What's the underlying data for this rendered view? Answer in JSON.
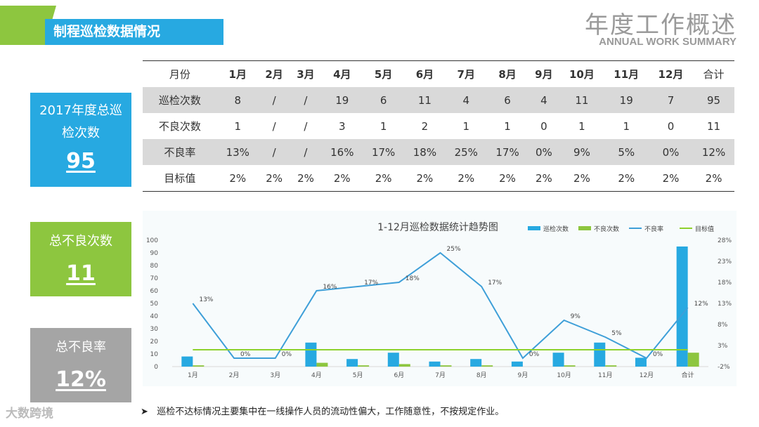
{
  "section_title": "制程巡检数据情况",
  "header": {
    "cn": "年度工作概述",
    "en": "ANNUAL WORK SUMMARY"
  },
  "cards": [
    {
      "label": "2017年度总巡检次数",
      "value": "95",
      "color": "#27a9e1"
    },
    {
      "label": "总不良次数",
      "value": "11",
      "color": "#8dc63f"
    },
    {
      "label": "总不良率",
      "value": "12%",
      "color": "#a5a5a5"
    }
  ],
  "table": {
    "header": [
      "月份",
      "1月",
      "2月",
      "3月",
      "4月",
      "5月",
      "6月",
      "7月",
      "8月",
      "9月",
      "10月",
      "11月",
      "12月",
      "合计"
    ],
    "rows": [
      [
        "巡检次数",
        "8",
        "/",
        "/",
        "19",
        "6",
        "11",
        "4",
        "6",
        "4",
        "11",
        "19",
        "7",
        "95"
      ],
      [
        "不良次数",
        "1",
        "/",
        "/",
        "3",
        "1",
        "2",
        "1",
        "1",
        "0",
        "1",
        "1",
        "0",
        "11"
      ],
      [
        "不良率",
        "13%",
        "/",
        "/",
        "16%",
        "17%",
        "18%",
        "25%",
        "17%",
        "0%",
        "9%",
        "5%",
        "0%",
        "12%"
      ],
      [
        "目标值",
        "2%",
        "2%",
        "2%",
        "2%",
        "2%",
        "2%",
        "2%",
        "2%",
        "2%",
        "2%",
        "2%",
        "2%",
        "2%"
      ]
    ]
  },
  "chart_data": {
    "type": "bar",
    "title": "1-12月巡检数据统计趋势图",
    "categories": [
      "1月",
      "2月",
      "3月",
      "4月",
      "5月",
      "6月",
      "7月",
      "8月",
      "9月",
      "10月",
      "11月",
      "12月",
      "合计"
    ],
    "series": [
      {
        "name": "巡检次数",
        "type": "bar",
        "axis": "left",
        "color": "#27a9e1",
        "values": [
          8,
          0,
          0,
          19,
          6,
          11,
          4,
          6,
          4,
          11,
          19,
          7,
          95
        ]
      },
      {
        "name": "不良次数",
        "type": "bar",
        "axis": "left",
        "color": "#8dc63f",
        "values": [
          1,
          0,
          0,
          3,
          1,
          2,
          1,
          1,
          0,
          1,
          1,
          0,
          11
        ]
      },
      {
        "name": "不良率",
        "type": "line",
        "axis": "right",
        "color": "#3e9fd8",
        "values": [
          13,
          0,
          0,
          16,
          17,
          18,
          25,
          17,
          0,
          9,
          5,
          0,
          12
        ],
        "labels": [
          "13%",
          "0%",
          "0%",
          "16%",
          "17%",
          "18%",
          "25%",
          "17%",
          "0%",
          "9%",
          "5%",
          "0%",
          "12%"
        ]
      },
      {
        "name": "目标值",
        "type": "line",
        "axis": "right",
        "color": "#8ed12d",
        "values": [
          2,
          2,
          2,
          2,
          2,
          2,
          2,
          2,
          2,
          2,
          2,
          2,
          2
        ]
      }
    ],
    "ylim_left": [
      0,
      100
    ],
    "yticks_left": [
      "0",
      "10",
      "20",
      "30",
      "40",
      "50",
      "60",
      "70",
      "80",
      "90",
      "100"
    ],
    "ylim_right": [
      -2,
      28
    ],
    "yticks_right": [
      "-2%",
      "3%",
      "8%",
      "13%",
      "18%",
      "23%",
      "28%"
    ],
    "legend_position": "top-right"
  },
  "note": "巡检不达标情况主要集中在一线操作人员的流动性偏大，工作随意性，不按规定作业。",
  "watermark": "大数跨境"
}
